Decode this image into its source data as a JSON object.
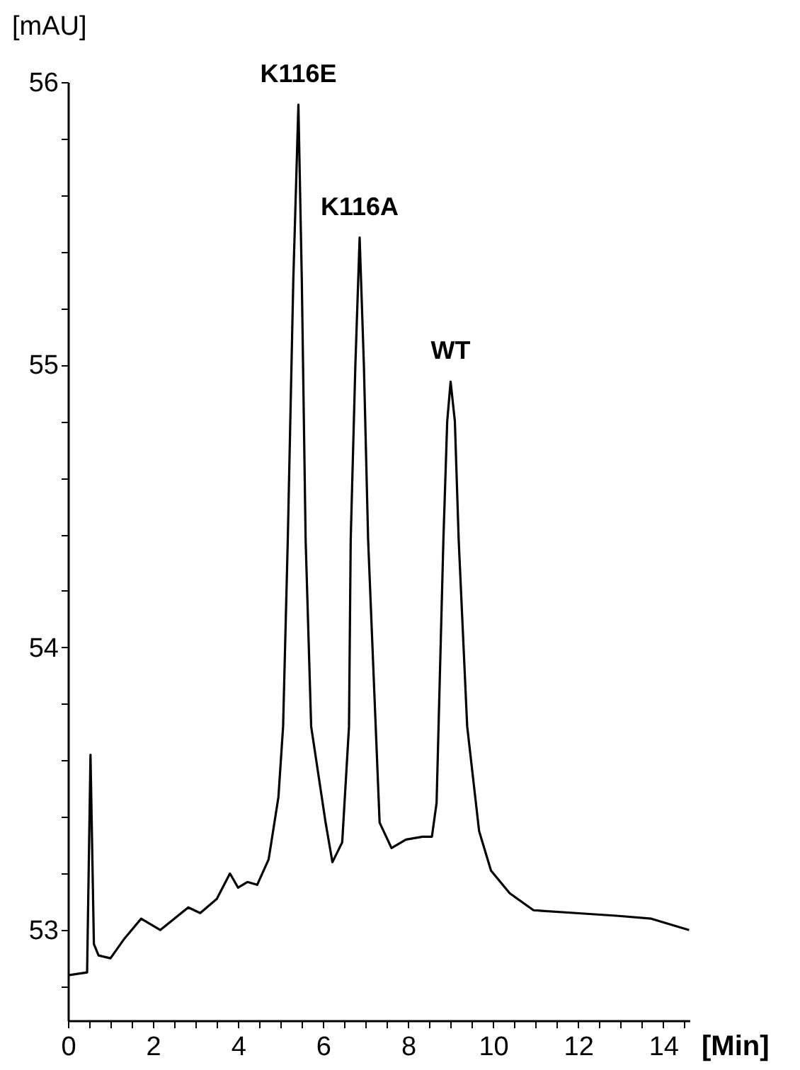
{
  "chart_data": {
    "type": "line",
    "xlabel": "[Min]",
    "ylabel": "[mAU]",
    "x": [
      0,
      0.45,
      0.53,
      0.61,
      0.72,
      1.0,
      1.33,
      1.72,
      2.17,
      2.5,
      2.83,
      3.11,
      3.5,
      3.81,
      4.0,
      4.22,
      4.45,
      4.72,
      4.95,
      5.06,
      5.17,
      5.3,
      5.42,
      5.5,
      5.59,
      5.72,
      6.06,
      6.22,
      6.45,
      6.61,
      6.65,
      6.76,
      6.86,
      6.96,
      7.06,
      7.33,
      7.61,
      7.95,
      8.34,
      8.56,
      8.67,
      8.83,
      8.92,
      9.0,
      9.1,
      9.19,
      9.39,
      9.67,
      9.95,
      10.39,
      10.95,
      11.95,
      12.95,
      13.72,
      14.61
    ],
    "series": [
      {
        "color": "#000000",
        "values": [
          52.84,
          52.85,
          53.62,
          52.95,
          52.91,
          52.9,
          52.97,
          53.04,
          53.0,
          53.04,
          53.08,
          53.06,
          53.11,
          53.2,
          53.15,
          53.17,
          53.16,
          53.25,
          53.47,
          53.72,
          54.38,
          55.3,
          55.92,
          55.3,
          54.38,
          53.72,
          53.38,
          53.24,
          53.31,
          53.72,
          54.38,
          55.0,
          55.45,
          55.0,
          54.38,
          53.38,
          53.29,
          53.32,
          53.33,
          53.33,
          53.45,
          54.38,
          54.8,
          54.94,
          54.8,
          54.38,
          53.72,
          53.35,
          53.21,
          53.13,
          53.07,
          53.06,
          53.05,
          53.04,
          53.0
        ]
      }
    ],
    "annotations": [
      {
        "text": "K116E",
        "x": 5.42,
        "y": 55.92
      },
      {
        "text": "K116A",
        "x": 6.86,
        "y": 55.45
      },
      {
        "text": "WT",
        "x": 9.0,
        "y": 54.94
      }
    ],
    "xlim": [
      0,
      14.62
    ],
    "ylim": [
      52.68,
      56
    ],
    "xticks": [
      0,
      {
        "value": 0.5,
        "label": null
      },
      {
        "value": 1,
        "label": null
      },
      {
        "value": 1.5,
        "label": null
      },
      2,
      {
        "value": 2.5,
        "label": null
      },
      {
        "value": 3,
        "label": null
      },
      {
        "value": 3.5,
        "label": null
      },
      4,
      {
        "value": 4.5,
        "label": null
      },
      {
        "value": 5,
        "label": null
      },
      {
        "value": 5.5,
        "label": null
      },
      6,
      {
        "value": 6.5,
        "label": null
      },
      {
        "value": 7,
        "label": null
      },
      {
        "value": 7.5,
        "label": null
      },
      8,
      {
        "value": 8.5,
        "label": null
      },
      {
        "value": 9,
        "label": null
      },
      {
        "value": 9.5,
        "label": null
      },
      10,
      {
        "value": 10.5,
        "label": null
      },
      {
        "value": 11,
        "label": null
      },
      {
        "value": 11.5,
        "label": null
      },
      12,
      {
        "value": 12.5,
        "label": null
      },
      {
        "value": 13,
        "label": null
      },
      {
        "value": 13.5,
        "label": null
      },
      14,
      {
        "value": 14.5,
        "label": null
      }
    ],
    "yticks": [
      {
        "value": 52.8,
        "label": null
      },
      53,
      {
        "value": 53.2,
        "label": null
      },
      {
        "value": 53.4,
        "label": null
      },
      {
        "value": 53.6,
        "label": null
      },
      {
        "value": 53.8,
        "label": null
      },
      54,
      {
        "value": 54.2,
        "label": null
      },
      {
        "value": 54.4,
        "label": null
      },
      {
        "value": 54.6,
        "label": null
      },
      {
        "value": 54.8,
        "label": null
      },
      55,
      {
        "value": 55.2,
        "label": null
      },
      {
        "value": 55.4,
        "label": null
      },
      {
        "value": 55.6,
        "label": null
      },
      {
        "value": 55.8,
        "label": null
      },
      56
    ],
    "grid": false,
    "marker": "none",
    "line_style": "solid"
  }
}
